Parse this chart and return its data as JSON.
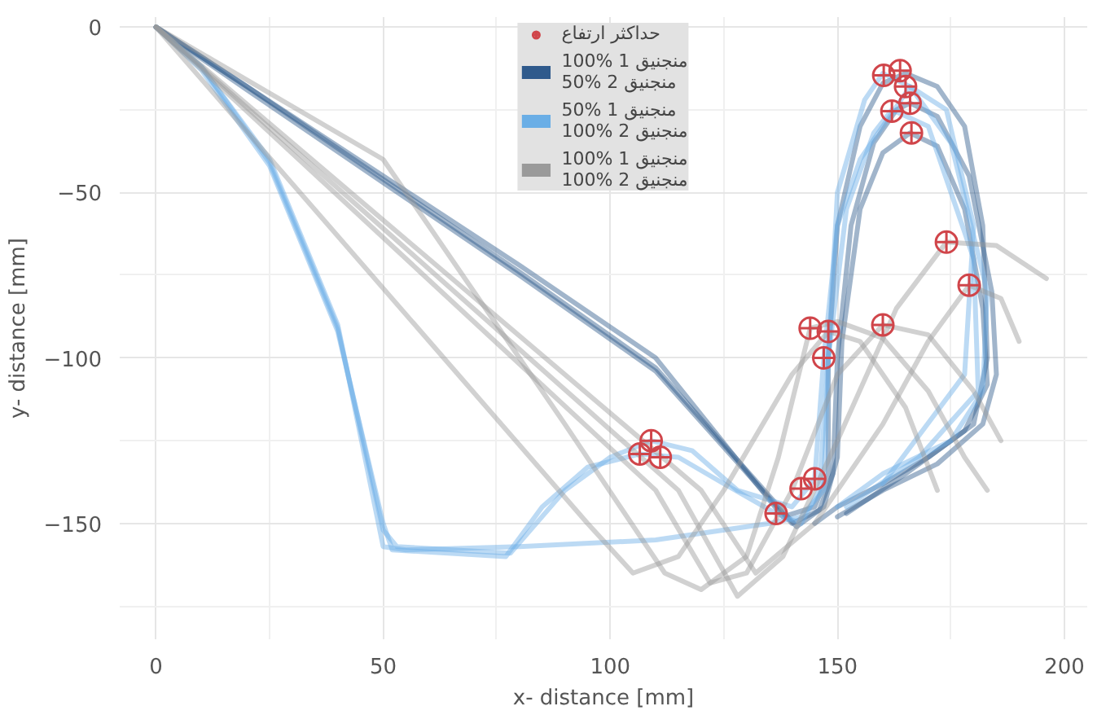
{
  "chart_data": {
    "type": "line",
    "xlabel": "x- distance [mm]",
    "ylabel": "y- distance [mm]",
    "xlim": [
      -8,
      205
    ],
    "ylim": [
      -185,
      3
    ],
    "xticks": [
      0,
      50,
      100,
      150,
      200
    ],
    "yticks": [
      0,
      -50,
      -100,
      -150
    ],
    "grid": true,
    "legend": "top",
    "line_style": "solid",
    "marker": "none",
    "series": [
      {
        "name": "100% منجنیق 1\n50% منجنیق 2",
        "color": "#2f5a8c",
        "x": [
          0,
          20,
          50,
          80,
          110,
          138,
          145,
          148,
          148,
          150,
          155,
          160,
          165,
          172,
          178,
          182,
          183,
          180,
          170,
          160,
          150,
          145
        ],
        "values": [
          0,
          -18,
          -45,
          -72,
          -100,
          -148,
          -145,
          -135,
          -100,
          -60,
          -30,
          -17,
          -14,
          -18,
          -30,
          -60,
          -100,
          -120,
          -130,
          -138,
          -145,
          -150
        ]
      },
      {
        "color": "#2f5a8c",
        "x": [
          0,
          20,
          50,
          80,
          110,
          140,
          146,
          149,
          150,
          153,
          158,
          163,
          166,
          172,
          179,
          184,
          185,
          182,
          172,
          160,
          150
        ],
        "values": [
          0,
          -19,
          -47,
          -75,
          -104,
          -150,
          -146,
          -135,
          -100,
          -60,
          -35,
          -25,
          -23,
          -27,
          -45,
          -80,
          -105,
          -120,
          -132,
          -140,
          -148
        ]
      },
      {
        "color": "#2f5a8c",
        "x": [
          0,
          20,
          50,
          80,
          110,
          141,
          147,
          150,
          151,
          155,
          160,
          166,
          172,
          178,
          182,
          183,
          178,
          165,
          152
        ],
        "values": [
          0,
          -18,
          -46,
          -74,
          -103,
          -151,
          -145,
          -130,
          -95,
          -55,
          -38,
          -32,
          -36,
          -55,
          -85,
          -108,
          -122,
          -135,
          -147
        ]
      },
      {
        "name": "50% منجنیق 1\n100% منجنیق 2",
        "color": "#6aaee6",
        "x": [
          0,
          10,
          25,
          40,
          50,
          55,
          80,
          110,
          135,
          142,
          147,
          148,
          150,
          156,
          160,
          166,
          175,
          183,
          182,
          175,
          160,
          150
        ],
        "values": [
          0,
          -12,
          -40,
          -90,
          -157,
          -158,
          -157,
          -155,
          -150,
          -148,
          -140,
          -100,
          -50,
          -22,
          -14,
          -18,
          -35,
          -80,
          -110,
          -125,
          -135,
          -145
        ]
      },
      {
        "color": "#6aaee6",
        "x": [
          0,
          10,
          25,
          40,
          50,
          52,
          77,
          85,
          95,
          106.5,
          115,
          125,
          136.5,
          142,
          146,
          148,
          152,
          158,
          162,
          170,
          180,
          181,
          168,
          152
        ],
        "values": [
          0,
          -13,
          -42,
          -92,
          -150,
          -158,
          -160,
          -145,
          -133,
          -129,
          -130,
          -138,
          -147,
          -150,
          -140,
          -100,
          -55,
          -32,
          -25,
          -30,
          -70,
          -110,
          -130,
          -145
        ]
      },
      {
        "color": "#6aaee6",
        "x": [
          0,
          10,
          25,
          40,
          50,
          53,
          78,
          90,
          100,
          109,
          118,
          128,
          140,
          143,
          145,
          147,
          150,
          155,
          166,
          174,
          180,
          178,
          160
        ],
        "values": [
          0,
          -12,
          -41,
          -91,
          -152,
          -157,
          -159,
          -140,
          -130,
          -125,
          -128,
          -140,
          -145,
          -140,
          -136.5,
          -100,
          -60,
          -40,
          -18,
          -25,
          -60,
          -105,
          -138
        ]
      },
      {
        "name": "100% منجنیق 1\n100% منجنیق 2",
        "color": "#9a9a9a",
        "x": [
          0,
          50,
          90,
          112,
          120,
          130,
          137,
          144,
          150,
          160,
          170,
          178,
          183
        ],
        "values": [
          0,
          -40,
          -120,
          -165,
          -170,
          -160,
          -130,
          -91,
          -89,
          -94,
          -110,
          -130,
          -140
        ]
      },
      {
        "color": "#9a9a9a",
        "x": [
          0,
          95,
          105,
          115,
          125,
          140,
          148,
          155,
          165,
          172
        ],
        "values": [
          0,
          -150,
          -165,
          -160,
          -140,
          -105,
          -92,
          -95,
          -115,
          -140
        ]
      },
      {
        "color": "#9a9a9a",
        "x": [
          0,
          110,
          122,
          130,
          140,
          150,
          160,
          170,
          180,
          186
        ],
        "values": [
          0,
          -140,
          -168,
          -165,
          -140,
          -105,
          -90,
          -93,
          -110,
          -125
        ]
      },
      {
        "color": "#9a9a9a",
        "x": [
          0,
          115,
          128,
          138,
          150,
          163,
          174,
          185,
          196
        ],
        "values": [
          0,
          -140,
          -172,
          -160,
          -125,
          -85,
          -65,
          -66,
          -76
        ]
      },
      {
        "color": "#9a9a9a",
        "x": [
          0,
          120,
          132,
          145,
          160,
          170,
          179,
          186,
          190
        ],
        "values": [
          0,
          -140,
          -165,
          -150,
          -120,
          -95,
          -78,
          -82,
          -95
        ]
      },
      {
        "name": "حداکثر ارتفاع",
        "type": "scatter",
        "marker": "circle",
        "color": "#d0454a",
        "x": [
          160.2,
          163.8,
          165,
          166,
          162,
          166.3,
          174,
          179,
          160,
          144,
          148,
          147,
          109,
          106.5,
          111,
          142,
          145,
          136.5
        ],
        "values": [
          -14.6,
          -13.2,
          -18,
          -23,
          -25.4,
          -32,
          -65,
          -78,
          -90,
          -91,
          -92,
          -100,
          -125,
          -129,
          -130,
          -139.5,
          -136.5,
          -147
        ]
      }
    ]
  }
}
